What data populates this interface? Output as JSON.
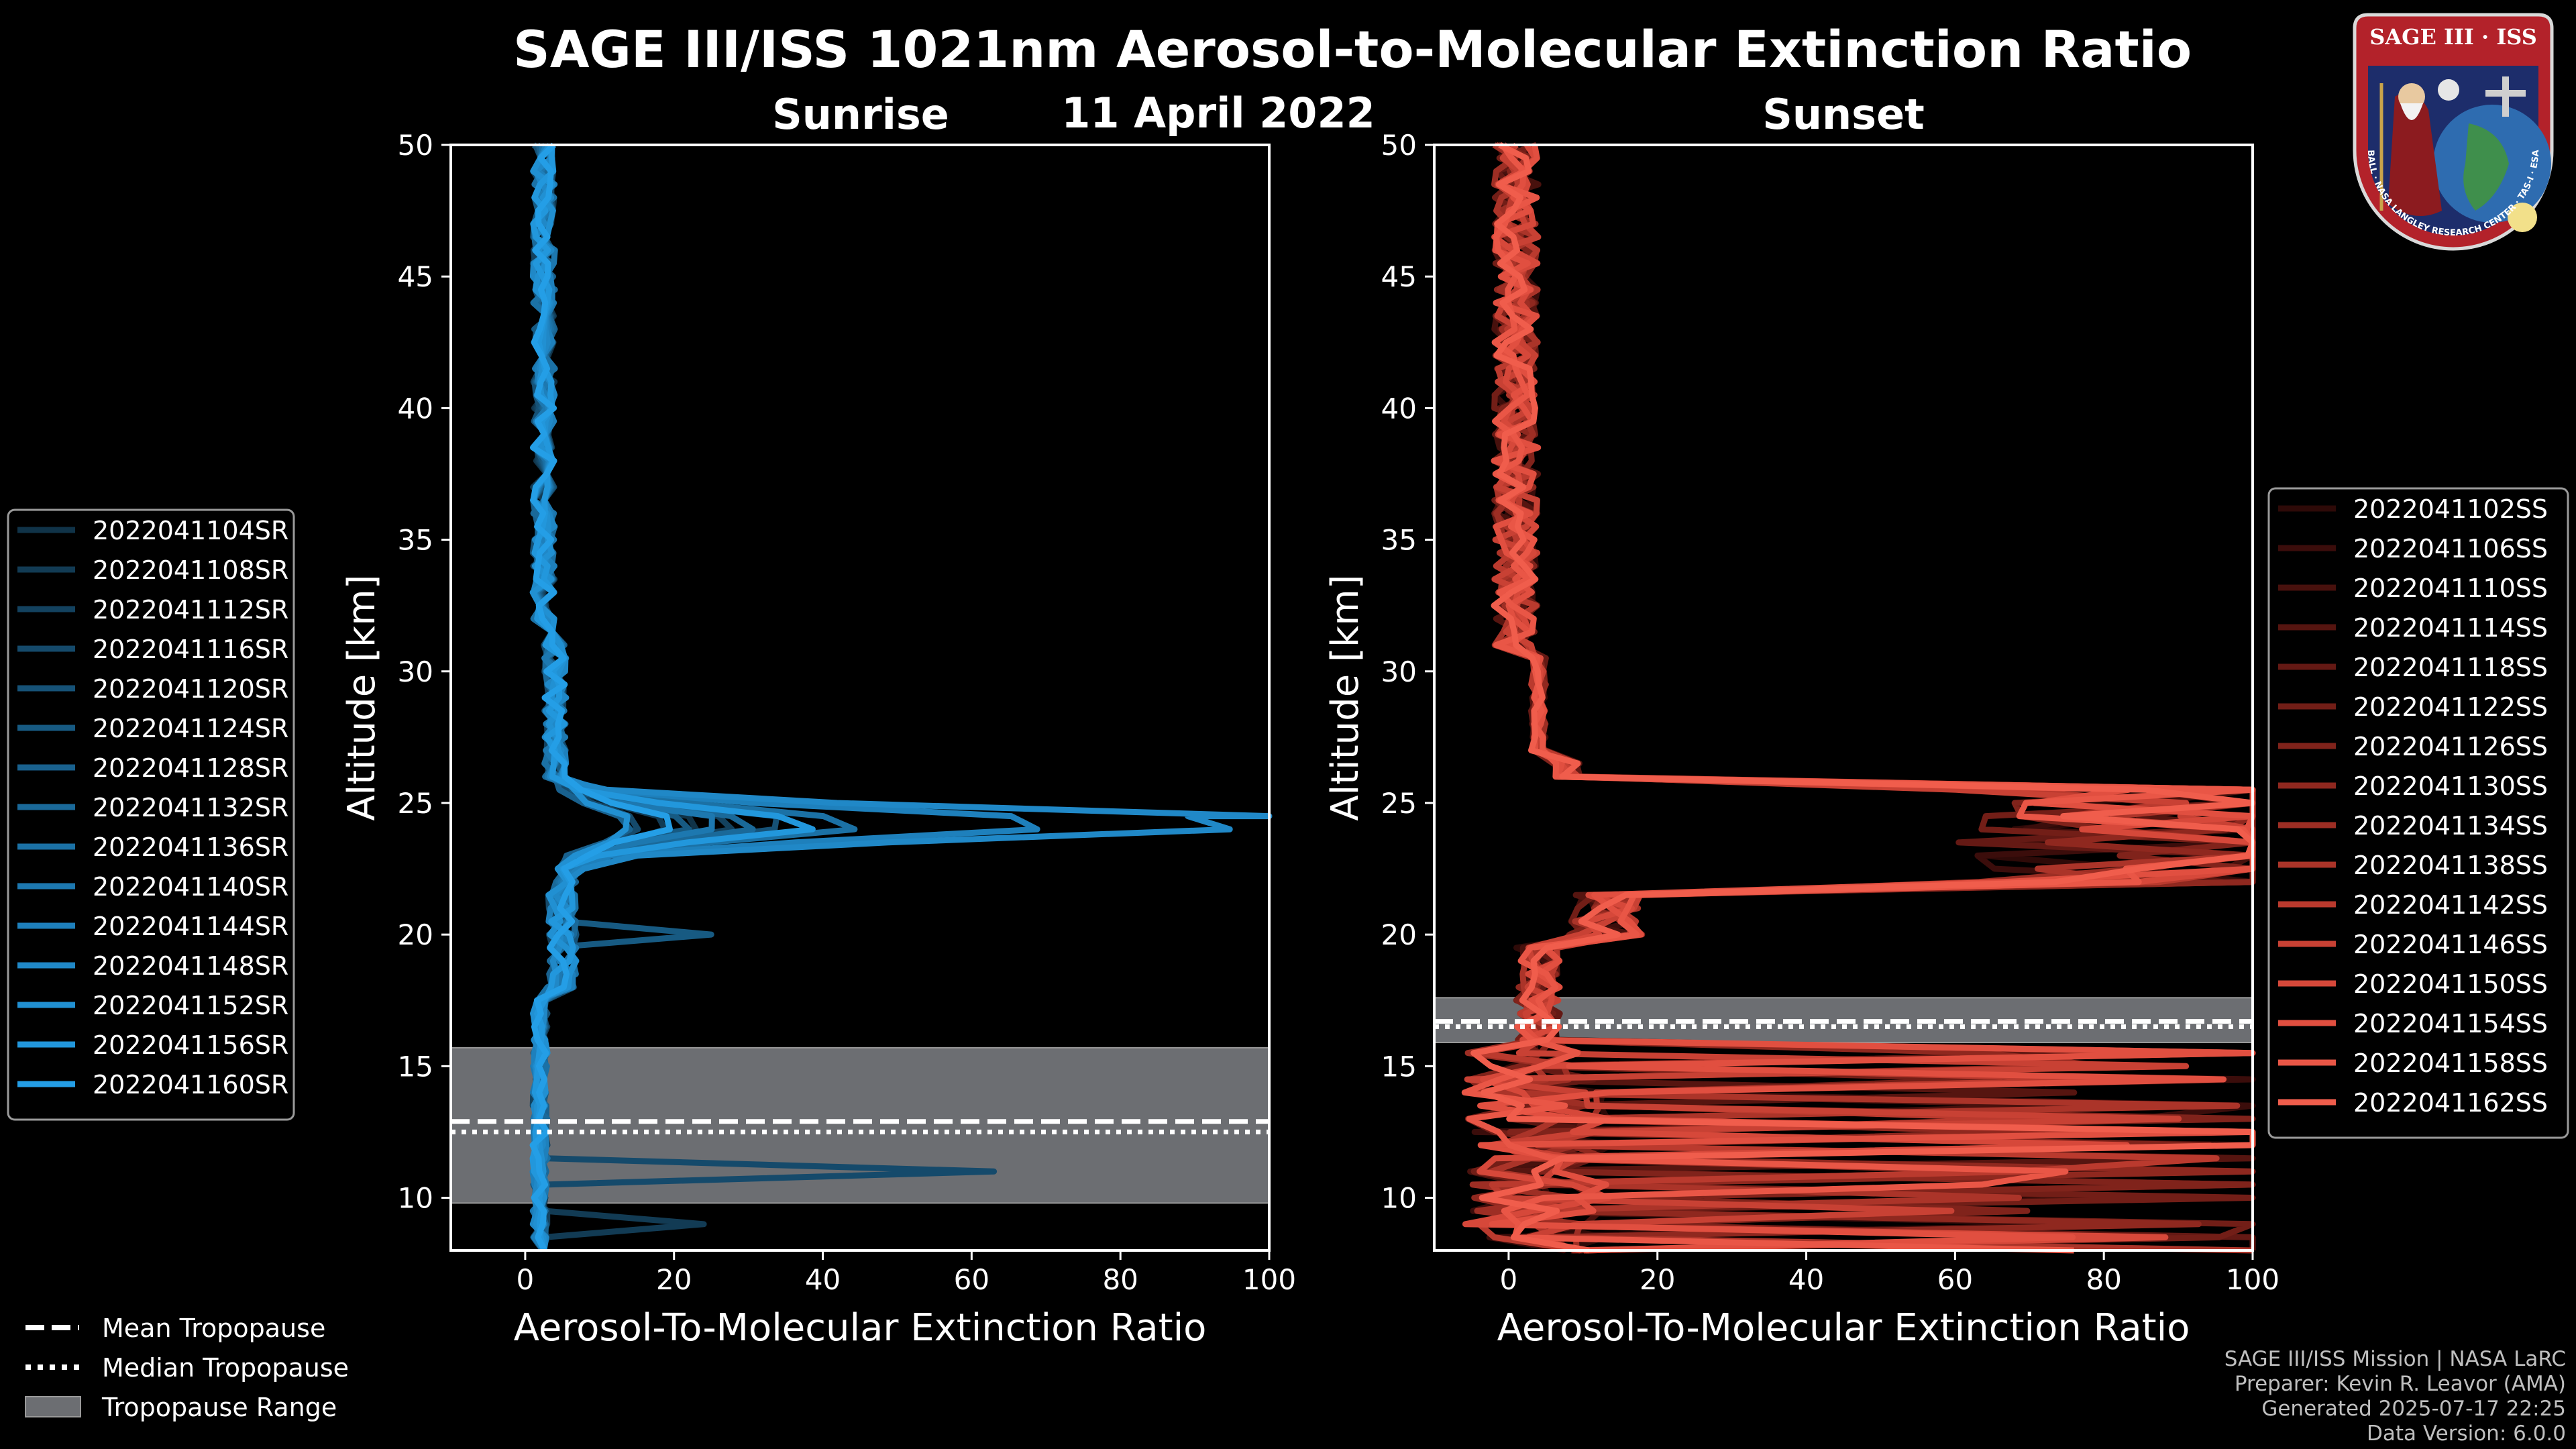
{
  "header": {
    "title": "SAGE III/ISS 1021nm Aerosol-to-Molecular Extinction Ratio",
    "date": "11 April 2022"
  },
  "logo": {
    "text": "SAGE III · ISS",
    "ring_text": "BALL · NASA LANGLEY RESEARCH CENTER · TAS-I · ESA"
  },
  "chart_data": [
    {
      "type": "line",
      "panel": "sunrise",
      "title": "Sunrise",
      "xlabel": "Aerosol-To-Molecular Extinction Ratio",
      "ylabel": "Altitude [km]",
      "xlim": [
        -10,
        100
      ],
      "ylim": [
        8,
        50
      ],
      "xticks": [
        0,
        20,
        40,
        60,
        80,
        100
      ],
      "yticks": [
        10,
        15,
        20,
        25,
        30,
        35,
        40,
        45,
        50
      ],
      "tropopause": {
        "mean": 12.9,
        "median": 12.5,
        "range": [
          9.8,
          15.7
        ]
      },
      "legend_position": "left",
      "series": [
        {
          "name": "2022041104SR",
          "color": "#103348",
          "peak": 22
        },
        {
          "name": "2022041108SR",
          "color": "#123b54",
          "peak": 18
        },
        {
          "name": "2022041112SR",
          "color": "#13425f",
          "peak": 28
        },
        {
          "name": "2022041116SR",
          "color": "#154a6b",
          "peak": 15
        },
        {
          "name": "2022041120SR",
          "color": "#165277",
          "peak": 35
        },
        {
          "name": "2022041124SR",
          "color": "#175a82",
          "peak": 20
        },
        {
          "name": "2022041128SR",
          "color": "#19618e",
          "peak": 12
        },
        {
          "name": "2022041132SR",
          "color": "#1a6999",
          "peak": 30
        },
        {
          "name": "2022041136SR",
          "color": "#1b71a5",
          "peak": 45
        },
        {
          "name": "2022041140SR",
          "color": "#1d78b0",
          "peak": 25
        },
        {
          "name": "2022041144SR",
          "color": "#1e80bc",
          "peak": 72
        },
        {
          "name": "2022041148SR",
          "color": "#2088c7",
          "peak": 100
        },
        {
          "name": "2022041152SR",
          "color": "#2190d2",
          "peak": 14
        },
        {
          "name": "2022041156SR",
          "color": "#2297dc",
          "peak": 38
        },
        {
          "name": "2022041160SR",
          "color": "#249ee6",
          "peak": 18
        }
      ]
    },
    {
      "type": "line",
      "panel": "sunset",
      "title": "Sunset",
      "xlabel": "Aerosol-To-Molecular Extinction Ratio",
      "ylabel": "Altitude [km]",
      "xlim": [
        -10,
        100
      ],
      "ylim": [
        8,
        50
      ],
      "xticks": [
        0,
        20,
        40,
        60,
        80,
        100
      ],
      "yticks": [
        10,
        15,
        20,
        25,
        30,
        35,
        40,
        45,
        50
      ],
      "tropopause": {
        "mean": 16.7,
        "median": 16.5,
        "range": [
          15.9,
          17.6
        ]
      },
      "legend_position": "right",
      "series": [
        {
          "name": "2022041102SS",
          "color": "#2e0a08"
        },
        {
          "name": "2022041106SS",
          "color": "#3b0d0b"
        },
        {
          "name": "2022041110SS",
          "color": "#48110d"
        },
        {
          "name": "2022041114SS",
          "color": "#561510"
        },
        {
          "name": "2022041118SS",
          "color": "#641914"
        },
        {
          "name": "2022041122SS",
          "color": "#721e17"
        },
        {
          "name": "2022041126SS",
          "color": "#80231b"
        },
        {
          "name": "2022041130SS",
          "color": "#8f281f"
        },
        {
          "name": "2022041134SS",
          "color": "#9d2e24"
        },
        {
          "name": "2022041138SS",
          "color": "#ab3429"
        },
        {
          "name": "2022041142SS",
          "color": "#ba3a2e"
        },
        {
          "name": "2022041146SS",
          "color": "#c84134"
        },
        {
          "name": "2022041150SS",
          "color": "#d6483a"
        },
        {
          "name": "2022041154SS",
          "color": "#e14f40"
        },
        {
          "name": "2022041158SS",
          "color": "#e95646"
        },
        {
          "name": "2022041162SS",
          "color": "#f05d4c"
        }
      ]
    }
  ],
  "shared_legend": {
    "mean": "Mean Tropopause",
    "median": "Median Tropopause",
    "range": "Tropopause Range",
    "range_color": "#6c6e72"
  },
  "credits": {
    "line1": "SAGE III/ISS Mission | NASA LaRC",
    "line2": "Preparer: Kevin R. Leavor (AMA)",
    "line3": "Generated 2025-07-17 22:25",
    "line4": "Data Version: 6.0.0"
  }
}
